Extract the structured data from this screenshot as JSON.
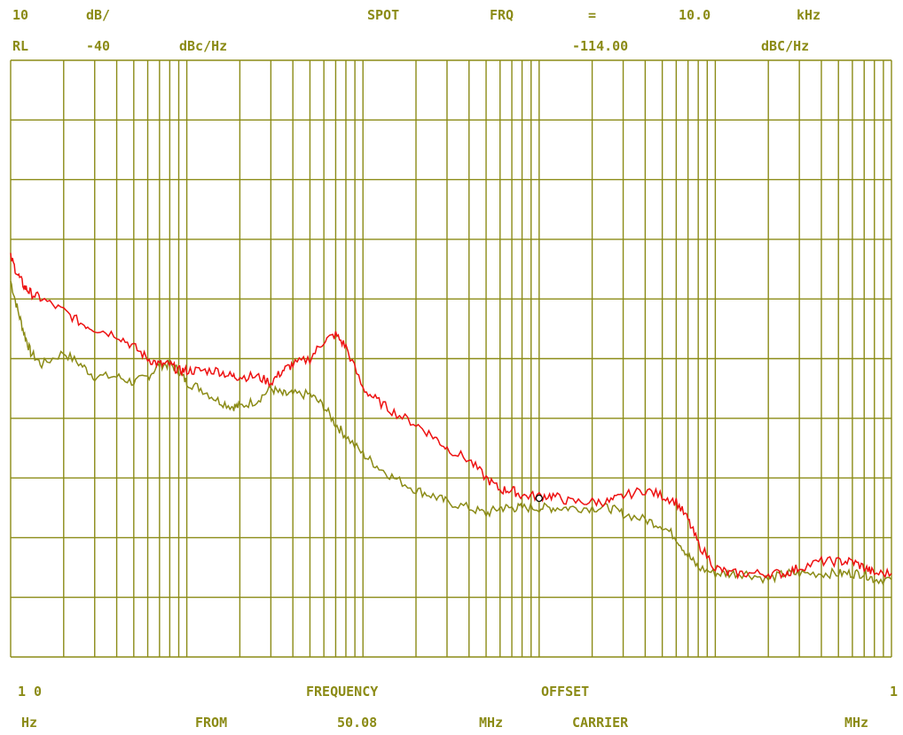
{
  "header": {
    "scale_value": "10",
    "scale_unit": "dB/",
    "spot": "SPOT",
    "frq": "FRQ",
    "equals": "=",
    "spot_freq": "10.0",
    "spot_freq_unit": "kHz",
    "ref_label": "RL",
    "ref_value": "-40",
    "ref_unit": "dBc/Hz",
    "marker_value": "-114.00",
    "marker_unit": "dBC/Hz"
  },
  "footer": {
    "start_value": "1 0",
    "start_unit": "Hz",
    "frequency": "FREQUENCY",
    "offset": "OFFSET",
    "from": "FROM",
    "carrier_freq": "50.08",
    "carrier_unit": "MHz",
    "carrier": "CARRIER",
    "stop_value": "1",
    "stop_unit": "MHz"
  },
  "colors": {
    "grid": "#8b8b16",
    "trace_red": "#ee1111",
    "trace_olive": "#8b8b16",
    "marker": "#000000"
  },
  "chart_data": {
    "type": "line",
    "title": "",
    "xlabel": "FREQUENCY OFFSET FROM 50.08 MHz CARRIER",
    "ylabel": "dBc/Hz",
    "x_scale": "log",
    "xlim": [
      10,
      1000000
    ],
    "ylim": [
      -140,
      -40
    ],
    "y_divisions": 10,
    "grid": true,
    "x_unit": "Hz",
    "marker": {
      "x": 10000,
      "y": -114
    },
    "series": [
      {
        "color": "#ee1111",
        "x": [
          10,
          11,
          12,
          13,
          15,
          20,
          25,
          30,
          40,
          50,
          60,
          70,
          80,
          90,
          100,
          120,
          150,
          180,
          200,
          250,
          300,
          350,
          400,
          500,
          600,
          700,
          800,
          1000,
          1200,
          1500,
          2000,
          2500,
          3000,
          4000,
          5000,
          6000,
          7000,
          8000,
          10000,
          12000,
          15000,
          20000,
          25000,
          30000,
          40000,
          50000,
          60000,
          70000,
          80000,
          100000,
          120000,
          150000,
          200000,
          250000,
          300000,
          400000,
          500000,
          600000,
          700000,
          800000,
          1000000
        ],
        "y": [
          -73,
          -76,
          -78,
          -79,
          -80,
          -82,
          -84,
          -85,
          -86,
          -88,
          -90,
          -91,
          -91,
          -92,
          -92,
          -92,
          -92,
          -93,
          -93,
          -93,
          -94,
          -92,
          -91,
          -90,
          -87,
          -86,
          -88,
          -95,
          -97,
          -99,
          -101,
          -103,
          -105,
          -107,
          -110,
          -112,
          -112,
          -113,
          -113,
          -113,
          -114,
          -114,
          -114,
          -113,
          -112,
          -113,
          -114,
          -117,
          -121,
          -125,
          -126,
          -126,
          -126,
          -126,
          -125,
          -124,
          -124,
          -124,
          -125,
          -126,
          -126
        ]
      },
      {
        "color": "#8b8b16",
        "x": [
          10,
          11,
          12,
          13,
          15,
          20,
          25,
          30,
          40,
          50,
          60,
          70,
          80,
          90,
          100,
          120,
          150,
          180,
          200,
          250,
          300,
          350,
          400,
          500,
          600,
          700,
          800,
          1000,
          1200,
          1500,
          2000,
          2500,
          3000,
          4000,
          5000,
          6000,
          7000,
          8000,
          10000,
          12000,
          15000,
          20000,
          25000,
          30000,
          40000,
          50000,
          60000,
          70000,
          80000,
          100000,
          120000,
          150000,
          200000,
          250000,
          300000,
          400000,
          500000,
          600000,
          700000,
          800000,
          1000000
        ],
        "y": [
          -77,
          -82,
          -86,
          -89,
          -91,
          -89,
          -91,
          -93,
          -93,
          -94,
          -93,
          -91,
          -91,
          -92,
          -94,
          -95,
          -97,
          -98,
          -98,
          -97,
          -95,
          -96,
          -96,
          -96,
          -98,
          -101,
          -103,
          -106,
          -108,
          -110,
          -112,
          -113,
          -114,
          -115,
          -116,
          -115,
          -115,
          -115,
          -115,
          -115,
          -115,
          -115,
          -115,
          -116,
          -117,
          -118,
          -120,
          -123,
          -125,
          -126,
          -126,
          -126,
          -127,
          -126,
          -126,
          -126,
          -126,
          -126,
          -126,
          -127,
          -127
        ]
      }
    ]
  }
}
